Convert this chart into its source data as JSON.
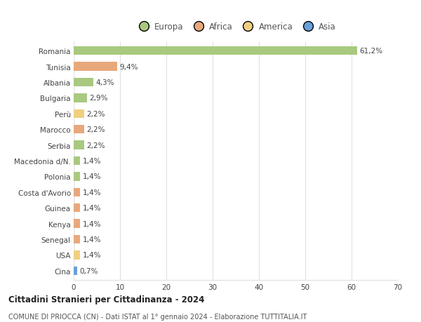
{
  "countries": [
    "Romania",
    "Tunisia",
    "Albania",
    "Bulgaria",
    "Perù",
    "Marocco",
    "Serbia",
    "Macedonia d/N.",
    "Polonia",
    "Costa d'Avorio",
    "Guinea",
    "Kenya",
    "Senegal",
    "USA",
    "Cina"
  ],
  "values": [
    61.2,
    9.4,
    4.3,
    2.9,
    2.2,
    2.2,
    2.2,
    1.4,
    1.4,
    1.4,
    1.4,
    1.4,
    1.4,
    1.4,
    0.7
  ],
  "labels": [
    "61,2%",
    "9,4%",
    "4,3%",
    "2,9%",
    "2,2%",
    "2,2%",
    "2,2%",
    "1,4%",
    "1,4%",
    "1,4%",
    "1,4%",
    "1,4%",
    "1,4%",
    "1,4%",
    "0,7%"
  ],
  "continents": [
    "Europa",
    "Africa",
    "Europa",
    "Europa",
    "America",
    "Africa",
    "Europa",
    "Europa",
    "Europa",
    "Africa",
    "Africa",
    "Africa",
    "Africa",
    "America",
    "Asia"
  ],
  "colors": {
    "Europa": "#a8c97f",
    "Africa": "#e8a87c",
    "America": "#f0d080",
    "Asia": "#6a9fd8"
  },
  "legend_labels": [
    "Europa",
    "Africa",
    "America",
    "Asia"
  ],
  "legend_colors": [
    "#a8c97f",
    "#e8a87c",
    "#f0d080",
    "#6a9fd8"
  ],
  "title1": "Cittadini Stranieri per Cittadinanza - 2024",
  "title2": "COMUNE DI PRIOCCA (CN) - Dati ISTAT al 1° gennaio 2024 - Elaborazione TUTTITALIA.IT",
  "xlim": [
    0,
    70
  ],
  "xticks": [
    0,
    10,
    20,
    30,
    40,
    50,
    60,
    70
  ],
  "background_color": "#ffffff",
  "grid_color": "#e0e0e0",
  "bar_height": 0.55
}
